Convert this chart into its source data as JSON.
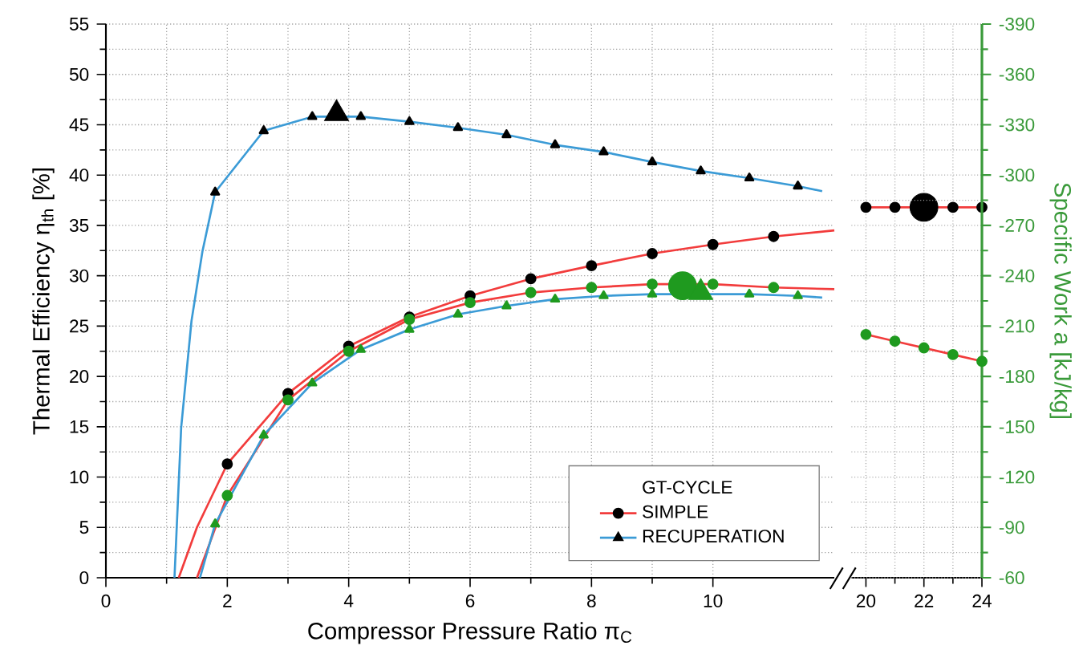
{
  "chart_data": [
    {
      "type": "line",
      "xlabel": "Compressor Pressure Ratio π$_{C}$",
      "ylabel": "Thermal Efficiency η$_{th}$ [%]",
      "legend_title": "GT-CYCLE",
      "legend": "bottom right",
      "grid": true,
      "xlim": [
        0,
        12
      ],
      "xticks": [
        0,
        2,
        4,
        6,
        8,
        10
      ],
      "ylim": [
        0,
        55
      ],
      "yticks": [
        0,
        5,
        10,
        15,
        20,
        25,
        30,
        35,
        40,
        45,
        50,
        55
      ],
      "y2lim": [
        -60,
        -390
      ],
      "series": [
        {
          "name": "SIMPLE",
          "color": "#f23c3c",
          "marker": "circle",
          "x": [
            2,
            3,
            4,
            5,
            6,
            7,
            8,
            9,
            10,
            11
          ],
          "values": [
            11.3,
            18.3,
            23.0,
            25.9,
            28.0,
            29.7,
            31.0,
            32.2,
            33.1,
            33.9
          ]
        },
        {
          "name": "RECUPERATION",
          "color": "#3b9bd6",
          "marker": "triangle",
          "x": [
            1.8,
            2.6,
            3.4,
            4.2,
            5.0,
            5.8,
            6.6,
            7.4,
            8.2,
            9.0,
            9.8,
            10.6,
            11.4
          ],
          "values": [
            38.3,
            44.4,
            45.8,
            45.8,
            45.3,
            44.7,
            44.0,
            43.0,
            42.3,
            41.3,
            40.4,
            39.7,
            38.9
          ]
        },
        {
          "color": "#f23c3c",
          "x": [
            1.2,
            1.5,
            2
          ],
          "values": [
            0,
            5,
            11.3
          ]
        },
        {
          "color": "#f23c3c",
          "x": [
            11,
            12
          ],
          "values": [
            33.9,
            34.5
          ]
        },
        {
          "color": "#3b9bd6",
          "x": [
            1.13,
            1.24,
            1.41,
            1.59,
            1.8
          ],
          "values": [
            0,
            14.9,
            25.5,
            32.4,
            38.3
          ]
        },
        {
          "color": "#3b9bd6",
          "x": [
            11.4,
            11.8
          ],
          "values": [
            38.9,
            38.4
          ]
        },
        {
          "type": "bubble",
          "color": "#000000",
          "marker": "triangle",
          "x": [
            3.8
          ],
          "values": [
            46.1
          ],
          "sizes": [
            0.41
          ]
        },
        {
          "axis": "y2",
          "color": "#f23c3c",
          "marker": "circle",
          "x": [
            2,
            3,
            4,
            5,
            6,
            7,
            8,
            9,
            10,
            11
          ],
          "values": [
            -109,
            -166,
            -195,
            -214,
            -224,
            -230,
            -233,
            -235,
            -235,
            -233
          ]
        },
        {
          "axis": "y2",
          "color": "#f23c3c",
          "x": [
            1.5,
            2
          ],
          "values": [
            -60,
            -109
          ]
        },
        {
          "axis": "y2",
          "color": "#f23c3c",
          "x": [
            11,
            12
          ],
          "values": [
            -233,
            -232
          ]
        },
        {
          "axis": "y2",
          "color": "#3b9bd6",
          "marker": "triangle",
          "x": [
            1.8,
            2.6,
            3.4,
            4.2,
            5.0,
            5.8,
            6.6,
            7.4,
            8.2,
            9.0,
            10.6,
            11.4
          ],
          "values": [
            -92,
            -145,
            -176,
            -196,
            -208,
            -217,
            -222,
            -226,
            -228,
            -229,
            -229,
            -228
          ]
        },
        {
          "axis": "y2",
          "color": "#3b9bd6",
          "x": [
            1.55,
            1.8
          ],
          "values": [
            -60,
            -92
          ]
        },
        {
          "axis": "y2",
          "color": "#3b9bd6",
          "x": [
            11.4,
            11.8
          ],
          "values": [
            -228,
            -227
          ]
        },
        {
          "type": "bubble",
          "axis": "y2",
          "color": "#1f9a1f",
          "marker": "circle",
          "x": [
            9.5
          ],
          "values": [
            -234
          ],
          "sizes": [
            1
          ]
        },
        {
          "type": "bubble",
          "axis": "y2",
          "color": "#1f9a1f",
          "marker": "triangle",
          "x": [
            9.8
          ],
          "values": [
            -230
          ],
          "sizes": [
            0.41
          ]
        }
      ]
    },
    {
      "type": "line",
      "y2label": "Specific Work a [kJ/kg]",
      "grid": true,
      "tick_labels": [
        "x",
        "y2"
      ],
      "xlim": [
        19.5,
        24
      ],
      "xticks": [
        20,
        22,
        24
      ],
      "ylim": [
        0,
        55
      ],
      "y2lim": [
        -60,
        -390
      ],
      "y2ticks": [
        -60,
        -90,
        -120,
        -150,
        -180,
        -210,
        -240,
        -270,
        -300,
        -330,
        -360,
        -390
      ],
      "series": [
        {
          "color": "#f23c3c",
          "marker": "circle",
          "x": [
            20,
            21,
            23,
            24
          ],
          "values": [
            36.8,
            36.8,
            36.8,
            36.8
          ]
        },
        {
          "type": "bubble",
          "color": "#000000",
          "marker": "circle",
          "x": [
            22
          ],
          "values": [
            36.8
          ],
          "sizes": [
            1
          ]
        },
        {
          "axis": "y2",
          "color": "#f23c3c",
          "marker": "circle",
          "x": [
            20,
            21,
            22,
            23,
            24
          ],
          "values": [
            -205,
            -201,
            -197,
            -193,
            -189
          ]
        }
      ]
    }
  ]
}
